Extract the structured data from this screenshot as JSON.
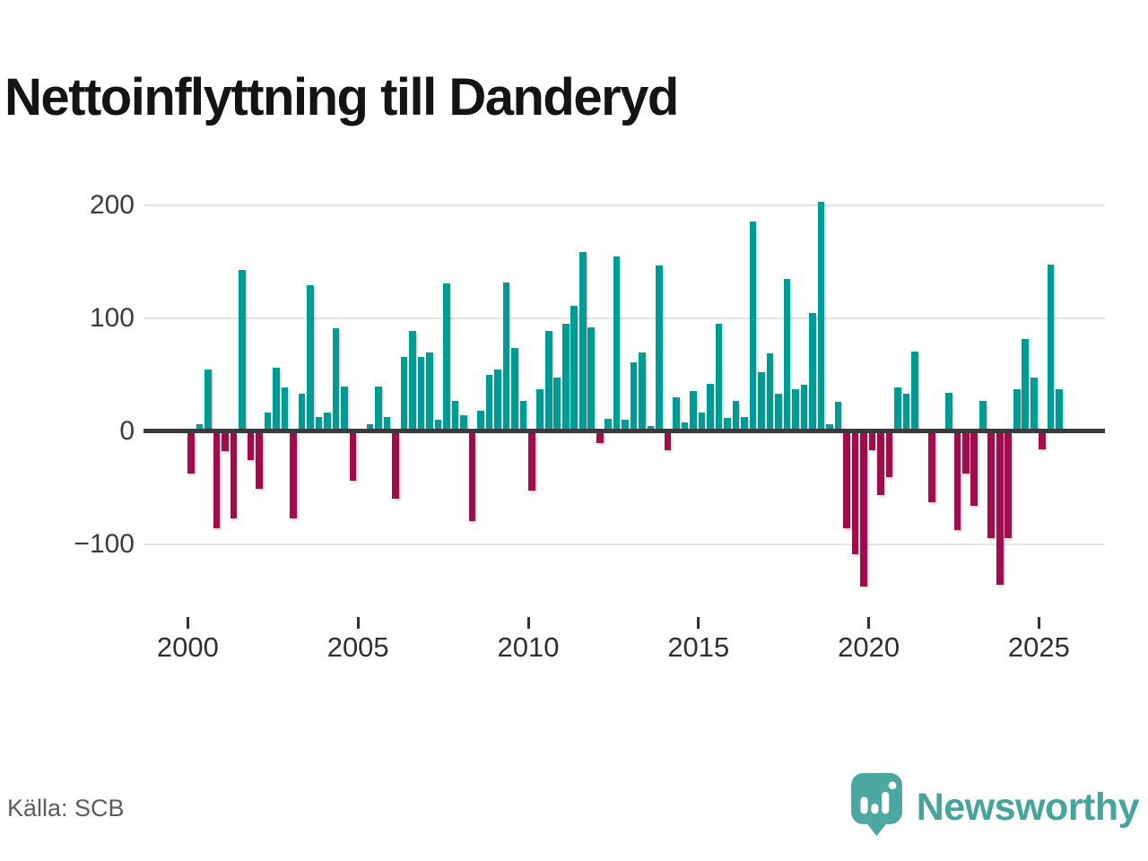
{
  "title": "Nettoinflyttning till Danderyd",
  "source_label": "Källa: SCB",
  "brand": {
    "name": "Newsworthy",
    "icon": "newsworthy-speech-bubble-bar-chart-icon",
    "color": "#45a49c"
  },
  "colors": {
    "positive": "#009b93",
    "negative": "#a00d4d",
    "axis": "#3a3a3a",
    "grid": "#e4e4e4"
  },
  "chart_data": {
    "type": "bar",
    "title": "Nettoinflyttning till Danderyd",
    "xlabel": "",
    "ylabel": "",
    "unit": "personer per kvartal",
    "ylim": [
      -150,
      210
    ],
    "grid": "horizontal",
    "y_ticks": [
      "200",
      "100",
      "0",
      "−100"
    ],
    "y_tick_values": [
      200,
      100,
      0,
      -100
    ],
    "x_ticks": [
      "2000",
      "2005",
      "2010",
      "2015",
      "2020",
      "2025"
    ],
    "start": "2000-Q1",
    "end": "2025-Q3",
    "years": [
      {
        "year": 2000,
        "values": [
          -36,
          6,
          55,
          -84
        ]
      },
      {
        "year": 2001,
        "values": [
          -16,
          -75,
          143,
          -24
        ]
      },
      {
        "year": 2002,
        "values": [
          -49,
          17,
          56,
          39
        ]
      },
      {
        "year": 2003,
        "values": [
          -75,
          33,
          129,
          13
        ]
      },
      {
        "year": 2004,
        "values": [
          17,
          91,
          40,
          -42
        ]
      },
      {
        "year": 2005,
        "values": [
          0,
          6,
          40,
          13
        ]
      },
      {
        "year": 2006,
        "values": [
          -58,
          66,
          89,
          66
        ]
      },
      {
        "year": 2007,
        "values": [
          70,
          10,
          131,
          27
        ]
      },
      {
        "year": 2008,
        "values": [
          14,
          -78,
          18,
          50
        ]
      },
      {
        "year": 2009,
        "values": [
          55,
          132,
          74,
          27
        ]
      },
      {
        "year": 2010,
        "values": [
          -51,
          37,
          89,
          48
        ]
      },
      {
        "year": 2011,
        "values": [
          95,
          111,
          159,
          92
        ]
      },
      {
        "year": 2012,
        "values": [
          -9,
          11,
          155,
          10
        ]
      },
      {
        "year": 2013,
        "values": [
          61,
          70,
          5,
          147
        ]
      },
      {
        "year": 2014,
        "values": [
          -15,
          30,
          8,
          36
        ]
      },
      {
        "year": 2015,
        "values": [
          17,
          42,
          95,
          12
        ]
      },
      {
        "year": 2016,
        "values": [
          27,
          13,
          186,
          52
        ]
      },
      {
        "year": 2017,
        "values": [
          69,
          33,
          135,
          37
        ]
      },
      {
        "year": 2018,
        "values": [
          41,
          105,
          203,
          6
        ]
      },
      {
        "year": 2019,
        "values": [
          26,
          -84,
          -107,
          -136
        ]
      },
      {
        "year": 2020,
        "values": [
          -15,
          -55,
          -39,
          39
        ]
      },
      {
        "year": 2021,
        "values": [
          33,
          71,
          0,
          -61
        ]
      },
      {
        "year": 2022,
        "values": [
          0,
          34,
          -86,
          -36
        ]
      },
      {
        "year": 2023,
        "values": [
          -64,
          27,
          -93,
          -134
        ]
      },
      {
        "year": 2024,
        "values": [
          -93,
          37,
          82,
          48
        ]
      },
      {
        "year": 2025,
        "values": [
          -14,
          148,
          37
        ]
      }
    ]
  }
}
